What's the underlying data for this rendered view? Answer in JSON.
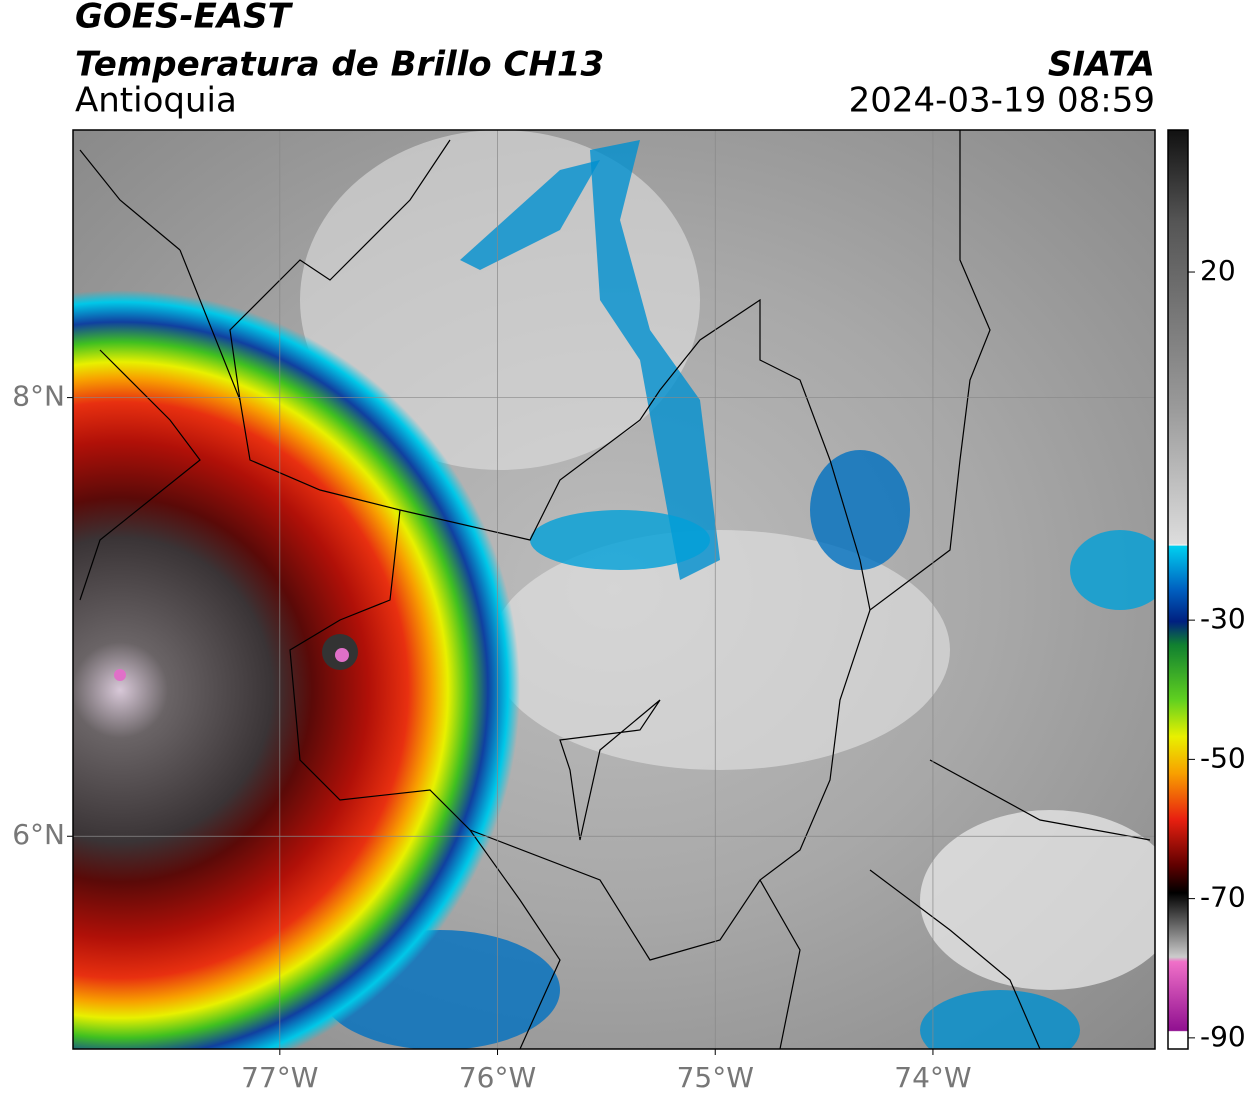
{
  "header": {
    "title": "GOES-EAST",
    "subtitle": "Temperatura de Brillo CH13",
    "region": "Antioquia",
    "source": "SIATA",
    "datetime": "2024-03-19 08:59"
  },
  "map": {
    "xlim": [
      -77.95,
      -72.98
    ],
    "ylim": [
      5.03,
      9.22
    ],
    "xticks": [
      {
        "value": -77,
        "label": "77°W"
      },
      {
        "value": -76,
        "label": "76°W"
      },
      {
        "value": -75,
        "label": "75°W"
      },
      {
        "value": -74,
        "label": "74°W"
      }
    ],
    "yticks": [
      {
        "value": 8,
        "label": "8°N"
      },
      {
        "value": 6,
        "label": "6°N"
      }
    ],
    "grid": true
  },
  "colorbar": {
    "lim": [
      -91.6,
      40.4
    ],
    "ticks": [
      20,
      -30,
      -50,
      -70,
      -90
    ]
  }
}
